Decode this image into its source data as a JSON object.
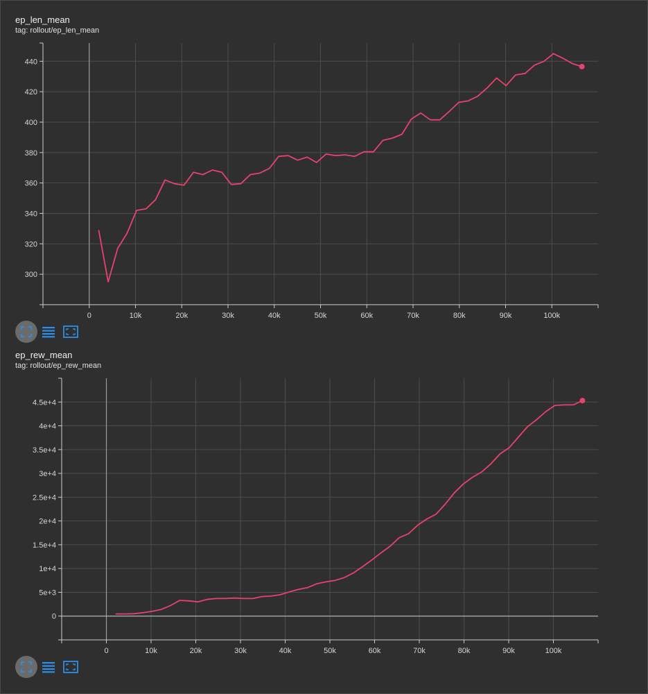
{
  "colors": {
    "background": "#2f2f2f",
    "line": "#e8426f",
    "grid": "#4d4d4d",
    "axis": "#cfcfcf",
    "icon_blue": "#2f8ee8"
  },
  "toolbar_icons": [
    "fullscreen-icon",
    "list-icon",
    "fit-domain-icon"
  ],
  "chart_data": [
    {
      "type": "line",
      "title": "ep_len_mean",
      "tag": "tag: rollout/ep_len_mean",
      "xlim": [
        -10000,
        110000
      ],
      "ylim": [
        280,
        452
      ],
      "x_ticks": [
        0,
        10000,
        20000,
        30000,
        40000,
        50000,
        60000,
        70000,
        80000,
        90000,
        100000
      ],
      "x_tick_labels": [
        "0",
        "10k",
        "20k",
        "30k",
        "40k",
        "50k",
        "60k",
        "70k",
        "80k",
        "90k",
        "100k"
      ],
      "y_ticks": [
        300,
        320,
        340,
        360,
        380,
        400,
        420,
        440
      ],
      "y_tick_labels": [
        "300",
        "320",
        "340",
        "360",
        "380",
        "400",
        "420",
        "440"
      ],
      "grid": true,
      "series": [
        {
          "x": [
            2048,
            4096,
            6144,
            8192,
            10240,
            12288,
            14336,
            16384,
            18432,
            20480,
            22528,
            24576,
            26624,
            28672,
            30720,
            32768,
            34816,
            36864,
            38912,
            40960,
            43008,
            45056,
            47104,
            49152,
            51200,
            53248,
            55296,
            57344,
            59392,
            61440,
            63488,
            65536,
            67584,
            69632,
            71680,
            73728,
            75776,
            77824,
            79872,
            81920,
            83968,
            86016,
            88064,
            90112,
            92160,
            94208,
            96256,
            98304,
            100352,
            102400,
            104448,
            106496
          ],
          "y": [
            329,
            295,
            317,
            327,
            342,
            343,
            349,
            362,
            359.5,
            358.5,
            367,
            365.5,
            368.5,
            367,
            359,
            359.5,
            365.5,
            366.5,
            369.5,
            377.5,
            378,
            375,
            377,
            373.5,
            379,
            378,
            378.5,
            377.5,
            380.5,
            380.5,
            388,
            389.5,
            392,
            402,
            406,
            401.5,
            401.5,
            407,
            413,
            414,
            417,
            422.5,
            429,
            424,
            431,
            432,
            437.5,
            440,
            445,
            442,
            438.5,
            436.5
          ]
        }
      ]
    },
    {
      "type": "line",
      "title": "ep_rew_mean",
      "tag": "tag: rollout/ep_rew_mean",
      "xlim": [
        -10000,
        110000
      ],
      "ylim": [
        -5000,
        50000
      ],
      "x_ticks": [
        0,
        10000,
        20000,
        30000,
        40000,
        50000,
        60000,
        70000,
        80000,
        90000,
        100000
      ],
      "x_tick_labels": [
        "0",
        "10k",
        "20k",
        "30k",
        "40k",
        "50k",
        "60k",
        "70k",
        "80k",
        "90k",
        "100k"
      ],
      "y_ticks": [
        0,
        5000,
        10000,
        15000,
        20000,
        25000,
        30000,
        35000,
        40000,
        45000
      ],
      "y_tick_labels": [
        "0",
        "5e+3",
        "1e+4",
        "1.5e+4",
        "2e+4",
        "2.5e+4",
        "3e+4",
        "3.5e+4",
        "4e+4",
        "4.5e+4"
      ],
      "grid": true,
      "series": [
        {
          "x": [
            2048,
            4096,
            6144,
            8192,
            10240,
            12288,
            14336,
            16384,
            18432,
            20480,
            22528,
            24576,
            26624,
            28672,
            30720,
            32768,
            34816,
            36864,
            38912,
            40960,
            43008,
            45056,
            47104,
            49152,
            51200,
            53248,
            55296,
            57344,
            59392,
            61440,
            63488,
            65536,
            67584,
            69632,
            71680,
            73728,
            75776,
            77824,
            79872,
            81920,
            83968,
            86016,
            88064,
            90112,
            92160,
            94208,
            96256,
            98304,
            100352,
            102400,
            104448,
            106496
          ],
          "y": [
            450,
            450,
            500,
            700,
            1000,
            1400,
            2200,
            3300,
            3200,
            3000,
            3500,
            3700,
            3700,
            3800,
            3700,
            3700,
            4100,
            4200,
            4500,
            5100,
            5600,
            6000,
            6800,
            7200,
            7500,
            8100,
            9100,
            10400,
            11800,
            13300,
            14700,
            16500,
            17300,
            19100,
            20400,
            21400,
            23500,
            25900,
            27800,
            29200,
            30300,
            32000,
            34100,
            35400,
            37600,
            39800,
            41300,
            43000,
            44300,
            44400,
            44400,
            45300
          ]
        }
      ]
    }
  ]
}
